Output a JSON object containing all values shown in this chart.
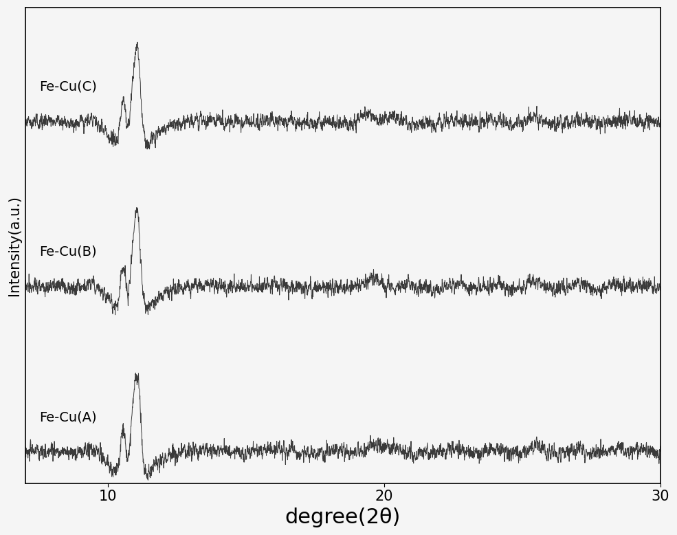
{
  "xlabel": "degree(2θ)",
  "ylabel": "Intensity(a.u.)",
  "xlim": [
    7,
    30
  ],
  "xticks": [
    10,
    20,
    30
  ],
  "series_labels": [
    "Fe-Cu(A)",
    "Fe-Cu(B)",
    "Fe-Cu(C)"
  ],
  "offsets": [
    0.0,
    1.2,
    2.4
  ],
  "line_color": "#3a3a3a",
  "background_color": "#f5f5f5",
  "seeds": [
    10,
    20,
    30
  ],
  "noise_level": 0.055,
  "xlabel_fontsize": 22,
  "ylabel_fontsize": 15,
  "tick_fontsize": 15,
  "label_fontsize": 14,
  "scale": 0.65
}
